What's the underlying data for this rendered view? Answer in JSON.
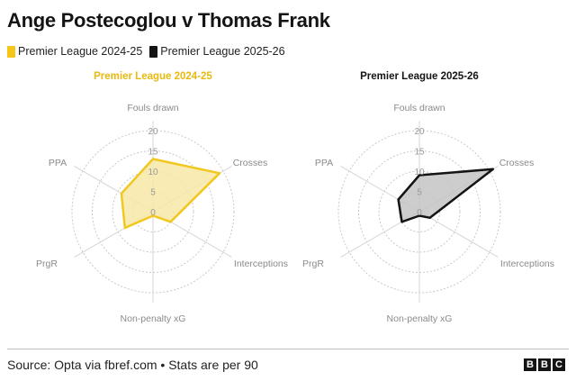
{
  "header": {
    "title": "Ange Postecoglou v Thomas Frank"
  },
  "legend": [
    {
      "label": "Premier League 2024-25",
      "color": "#f5c518"
    },
    {
      "label": "Premier League 2025-26",
      "color": "#141414"
    }
  ],
  "footer": {
    "source": "Source: Opta via fbref.com • Stats are per 90",
    "logo_letters": [
      "B",
      "B",
      "C"
    ]
  },
  "chart_data": [
    {
      "type": "radar",
      "title": "Premier League 2024-25",
      "title_color": "#e8b90e",
      "fill": "#f7e7a6",
      "stroke": "#f2c81f",
      "axes": [
        "Fouls drawn",
        "Crosses",
        "Interceptions",
        "Non-penalty xG",
        "PrgR",
        "PPA"
      ],
      "ticks": [
        0,
        5,
        10,
        15,
        20
      ],
      "range": [
        0,
        20
      ],
      "values": [
        13,
        19,
        5,
        1,
        8,
        9
      ]
    },
    {
      "type": "radar",
      "title": "Premier League 2025-26",
      "title_color": "#141414",
      "fill": "#c4c4c4",
      "stroke": "#141414",
      "axes": [
        "Fouls drawn",
        "Crosses",
        "Interceptions",
        "Non-penalty xG",
        "PrgR",
        "PPA"
      ],
      "ticks": [
        0,
        5,
        10,
        15,
        20
      ],
      "range": [
        0,
        20
      ],
      "values": [
        9,
        21,
        3,
        1,
        5,
        6
      ]
    }
  ]
}
